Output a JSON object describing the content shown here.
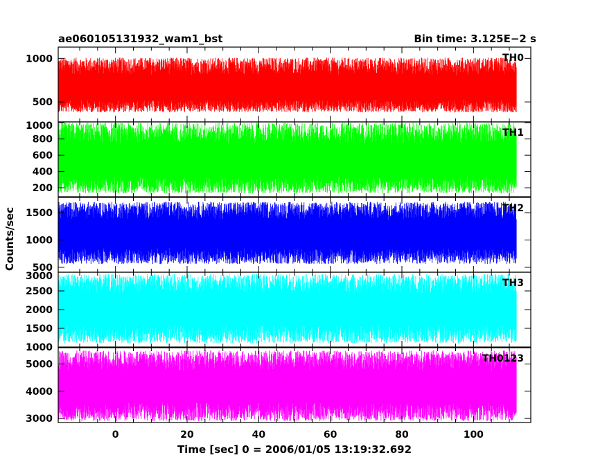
{
  "chart_data": {
    "type": "line",
    "title": "ae060105131932_wam1_bst",
    "bin_time_label": "Bin time: 3.125E−2 s",
    "xlabel": "Time [sec] 0 = 2006/01/05 13:19:32.692",
    "ylabel": "Counts/sec",
    "xlim": [
      -16,
      116
    ],
    "data_xlim": [
      -16,
      112
    ],
    "x_ticks": [
      0,
      20,
      40,
      60,
      80,
      100
    ],
    "grid": false,
    "panels": [
      {
        "name": "TH0",
        "color": "#ff0000",
        "ylim": [
          270,
          1130
        ],
        "y_ticks": [
          500,
          1000
        ],
        "value_low": 380,
        "value_high": 1010,
        "mean": 640
      },
      {
        "name": "TH1",
        "color": "#00ff00",
        "ylim": [
          90,
          1010
        ],
        "y_ticks": [
          200,
          400,
          600,
          800,
          1000
        ],
        "value_low": 130,
        "value_high": 1000,
        "mean": 520
      },
      {
        "name": "TH2",
        "color": "#0000ff",
        "ylim": [
          410,
          1780
        ],
        "y_ticks": [
          500,
          1000,
          1500
        ],
        "value_low": 560,
        "value_high": 1700,
        "mean": 1100
      },
      {
        "name": "TH3",
        "color": "#00ffff",
        "ylim": [
          1000,
          3000
        ],
        "y_ticks": [
          1000,
          1500,
          2000,
          2500,
          3000
        ],
        "value_low": 1100,
        "value_high": 2950,
        "mean": 2000
      },
      {
        "name": "TH0123",
        "color": "#ff00ff",
        "ylim": [
          2850,
          5600
        ],
        "y_ticks": [
          3000,
          4000,
          5000
        ],
        "value_low": 2900,
        "value_high": 5500,
        "mean": 4150
      }
    ]
  }
}
